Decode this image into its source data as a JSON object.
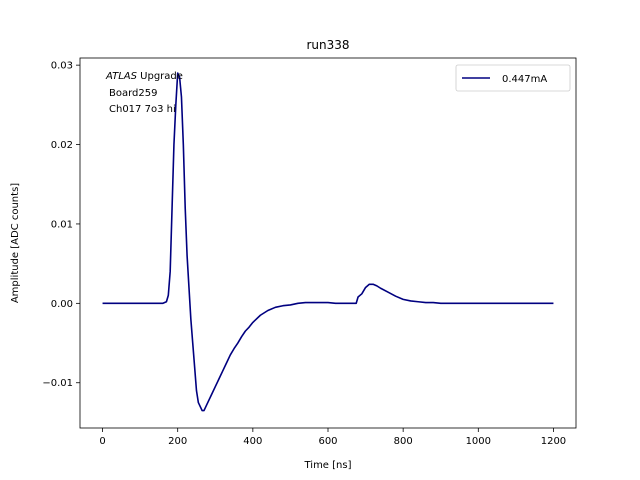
{
  "chart_data": {
    "type": "line",
    "title": "run338",
    "xlabel": "Time [ns]",
    "ylabel": "Amplitude [ADC counts]",
    "xlim": [
      -60,
      1260
    ],
    "ylim": [
      -0.0157,
      0.0309
    ],
    "xticks": [
      0,
      200,
      400,
      600,
      800,
      1000,
      1200
    ],
    "xtick_labels": [
      "0",
      "200",
      "400",
      "600",
      "800",
      "1000",
      "1200"
    ],
    "yticks": [
      -0.01,
      0.0,
      0.01,
      0.02,
      0.03
    ],
    "ytick_labels": [
      "−0.01",
      "0.00",
      "0.01",
      "0.02",
      "0.03"
    ],
    "grid": false,
    "legend_position": "top-right",
    "annotations": {
      "experiment_italic": "ATLAS",
      "experiment_rest": " Upgrade",
      "board": "Board259",
      "channel": "Ch017 7o3 hi"
    },
    "series": [
      {
        "name": "0.447mA",
        "color": "#000080",
        "points": [
          [
            0,
            0.0
          ],
          [
            20,
            0.0
          ],
          [
            40,
            0.0
          ],
          [
            60,
            0.0
          ],
          [
            80,
            0.0
          ],
          [
            100,
            0.0
          ],
          [
            120,
            0.0
          ],
          [
            140,
            0.0
          ],
          [
            160,
            0.0
          ],
          [
            170,
            0.0002
          ],
          [
            175,
            0.001
          ],
          [
            180,
            0.004
          ],
          [
            185,
            0.012
          ],
          [
            190,
            0.02
          ],
          [
            195,
            0.025
          ],
          [
            200,
            0.029
          ],
          [
            205,
            0.0285
          ],
          [
            210,
            0.026
          ],
          [
            215,
            0.02
          ],
          [
            220,
            0.012
          ],
          [
            225,
            0.006
          ],
          [
            230,
            0.002
          ],
          [
            235,
            -0.002
          ],
          [
            240,
            -0.005
          ],
          [
            245,
            -0.008
          ],
          [
            250,
            -0.011
          ],
          [
            255,
            -0.0125
          ],
          [
            260,
            -0.013
          ],
          [
            265,
            -0.0135
          ],
          [
            270,
            -0.0135
          ],
          [
            275,
            -0.013
          ],
          [
            280,
            -0.0125
          ],
          [
            290,
            -0.0115
          ],
          [
            300,
            -0.0105
          ],
          [
            310,
            -0.0095
          ],
          [
            320,
            -0.0085
          ],
          [
            330,
            -0.0075
          ],
          [
            340,
            -0.0065
          ],
          [
            350,
            -0.0057
          ],
          [
            360,
            -0.005
          ],
          [
            370,
            -0.0042
          ],
          [
            380,
            -0.0035
          ],
          [
            390,
            -0.003
          ],
          [
            400,
            -0.0024
          ],
          [
            420,
            -0.0015
          ],
          [
            440,
            -0.0009
          ],
          [
            460,
            -0.0005
          ],
          [
            480,
            -0.0003
          ],
          [
            500,
            -0.0002
          ],
          [
            520,
            0.0
          ],
          [
            540,
            0.0001
          ],
          [
            560,
            0.0001
          ],
          [
            580,
            0.0001
          ],
          [
            600,
            0.0001
          ],
          [
            620,
            0.0
          ],
          [
            640,
            0.0
          ],
          [
            660,
            0.0
          ],
          [
            675,
            0.0
          ],
          [
            680,
            0.0008
          ],
          [
            690,
            0.0012
          ],
          [
            700,
            0.002
          ],
          [
            710,
            0.0024
          ],
          [
            720,
            0.0024
          ],
          [
            730,
            0.0022
          ],
          [
            740,
            0.0019
          ],
          [
            760,
            0.0014
          ],
          [
            780,
            0.0009
          ],
          [
            800,
            0.0005
          ],
          [
            820,
            0.0003
          ],
          [
            840,
            0.0002
          ],
          [
            860,
            0.0001
          ],
          [
            880,
            0.0001
          ],
          [
            900,
            0.0
          ],
          [
            950,
            0.0
          ],
          [
            1000,
            0.0
          ],
          [
            1050,
            0.0
          ],
          [
            1100,
            0.0
          ],
          [
            1150,
            0.0
          ],
          [
            1200,
            0.0
          ]
        ]
      }
    ]
  }
}
